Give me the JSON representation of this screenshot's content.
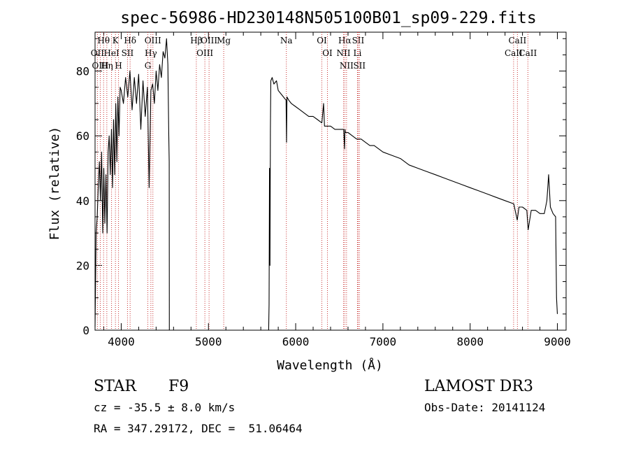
{
  "chart_data": {
    "type": "line",
    "title": "spec-56986-HD230148N505100B01_sp09-229.fits",
    "xlabel": "Wavelength (Å)",
    "ylabel": "Flux (relative)",
    "xlim": [
      3700,
      9100
    ],
    "ylim": [
      0,
      92
    ],
    "xticks": [
      4000,
      5000,
      6000,
      7000,
      8000,
      9000
    ],
    "yticks": [
      0,
      20,
      40,
      60,
      80
    ],
    "grid": false,
    "line_color": "#000000",
    "marker_color": "#c83232",
    "series": [
      {
        "x": [
          3700,
          3712,
          3725,
          3738,
          3750,
          3762,
          3775,
          3788,
          3800,
          3812,
          3825,
          3838,
          3850,
          3862,
          3875,
          3888,
          3900,
          3912,
          3925,
          3938,
          3950,
          3962,
          3975,
          3988,
          4000,
          4025,
          4050,
          4075,
          4100,
          4125,
          4150,
          4175,
          4200,
          4225,
          4250,
          4275,
          4300,
          4320,
          4340,
          4360,
          4380,
          4400,
          4420,
          4440,
          4460,
          4480,
          4500,
          4520,
          4535,
          4545,
          4550,
          4552,
          4560,
          5600,
          5690,
          5695,
          5700,
          5705,
          5710,
          5715,
          5730,
          5750,
          5780,
          5800,
          5830,
          5860,
          5890,
          5895,
          5900,
          5920,
          5950,
          6000,
          6050,
          6100,
          6150,
          6200,
          6250,
          6300,
          6320,
          6330,
          6340,
          6400,
          6450,
          6500,
          6550,
          6560,
          6565,
          6570,
          6600,
          6650,
          6700,
          6750,
          6800,
          6850,
          6900,
          7000,
          7100,
          7200,
          7300,
          7400,
          7500,
          7600,
          7700,
          7800,
          7900,
          8000,
          8100,
          8200,
          8300,
          8400,
          8500,
          8540,
          8560,
          8600,
          8650,
          8665,
          8700,
          8750,
          8800,
          8850,
          8880,
          8900,
          8920,
          8950,
          8980,
          8990,
          9000
        ],
        "values": [
          1,
          30,
          35,
          45,
          52,
          40,
          55,
          30,
          50,
          33,
          48,
          30,
          55,
          60,
          48,
          62,
          44,
          65,
          48,
          70,
          52,
          72,
          60,
          75,
          74,
          70,
          78,
          72,
          80,
          68,
          78,
          70,
          79,
          62,
          77,
          66,
          75,
          44,
          74,
          76,
          70,
          80,
          74,
          82,
          78,
          86,
          84,
          90,
          82,
          60,
          52,
          0,
          0,
          0,
          0,
          8,
          50,
          20,
          62,
          77,
          78,
          76,
          77,
          74,
          73,
          72,
          71,
          58,
          72,
          71,
          70,
          69,
          68,
          67,
          66,
          66,
          65,
          64,
          70,
          63,
          63,
          63,
          62,
          62,
          62,
          56,
          62,
          61,
          61,
          60,
          59,
          59,
          58,
          57,
          57,
          55,
          54,
          53,
          51,
          50,
          49,
          48,
          47,
          46,
          45,
          44,
          43,
          42,
          41,
          40,
          39,
          34,
          38,
          38,
          37,
          31,
          37,
          37,
          36,
          36,
          40,
          48,
          38,
          36,
          35,
          10,
          5
        ]
      }
    ],
    "lines": [
      {
        "label": "Hθ",
        "x": 3798
      },
      {
        "label": "OII",
        "x": 3727
      },
      {
        "label": "OIII",
        "x": 3760
      },
      {
        "label": "K",
        "x": 3934
      },
      {
        "label": "HeI",
        "x": 3889
      },
      {
        "label": "Hη",
        "x": 3835
      },
      {
        "label": "H",
        "x": 3969
      },
      {
        "label": "Hδ",
        "x": 4102
      },
      {
        "label": "SII",
        "x": 4072
      },
      {
        "label": "OIII",
        "x": 4363
      },
      {
        "label": "Hγ",
        "x": 4340
      },
      {
        "label": "G",
        "x": 4305
      },
      {
        "label": "OIII",
        "x": 5007
      },
      {
        "label": "OIII",
        "x": 4959
      },
      {
        "label": "Hβ",
        "x": 4861
      },
      {
        "label": "Mg",
        "x": 5175
      },
      {
        "label": "Na",
        "x": 5893
      },
      {
        "label": "OI",
        "x": 6300
      },
      {
        "label": "OI",
        "x": 6364
      },
      {
        "label": "Hα",
        "x": 6563
      },
      {
        "label": "NII",
        "x": 6548
      },
      {
        "label": "NII",
        "x": 6583
      },
      {
        "label": "SII",
        "x": 6716
      },
      {
        "label": "Li",
        "x": 6708
      },
      {
        "label": "SII",
        "x": 6731
      },
      {
        "label": "CaII",
        "x": 8542
      },
      {
        "label": "CaII",
        "x": 8498
      },
      {
        "label": "CaII",
        "x": 8662
      }
    ]
  },
  "info": {
    "object_type": "STAR",
    "subclass": "F9",
    "survey": "LAMOST DR3",
    "redshift": "cz = -35.5 ± 8.0 km/s",
    "obs_date": "Obs-Date: 20141124",
    "coords": "RA = 347.29172, DEC =  51.06464"
  }
}
